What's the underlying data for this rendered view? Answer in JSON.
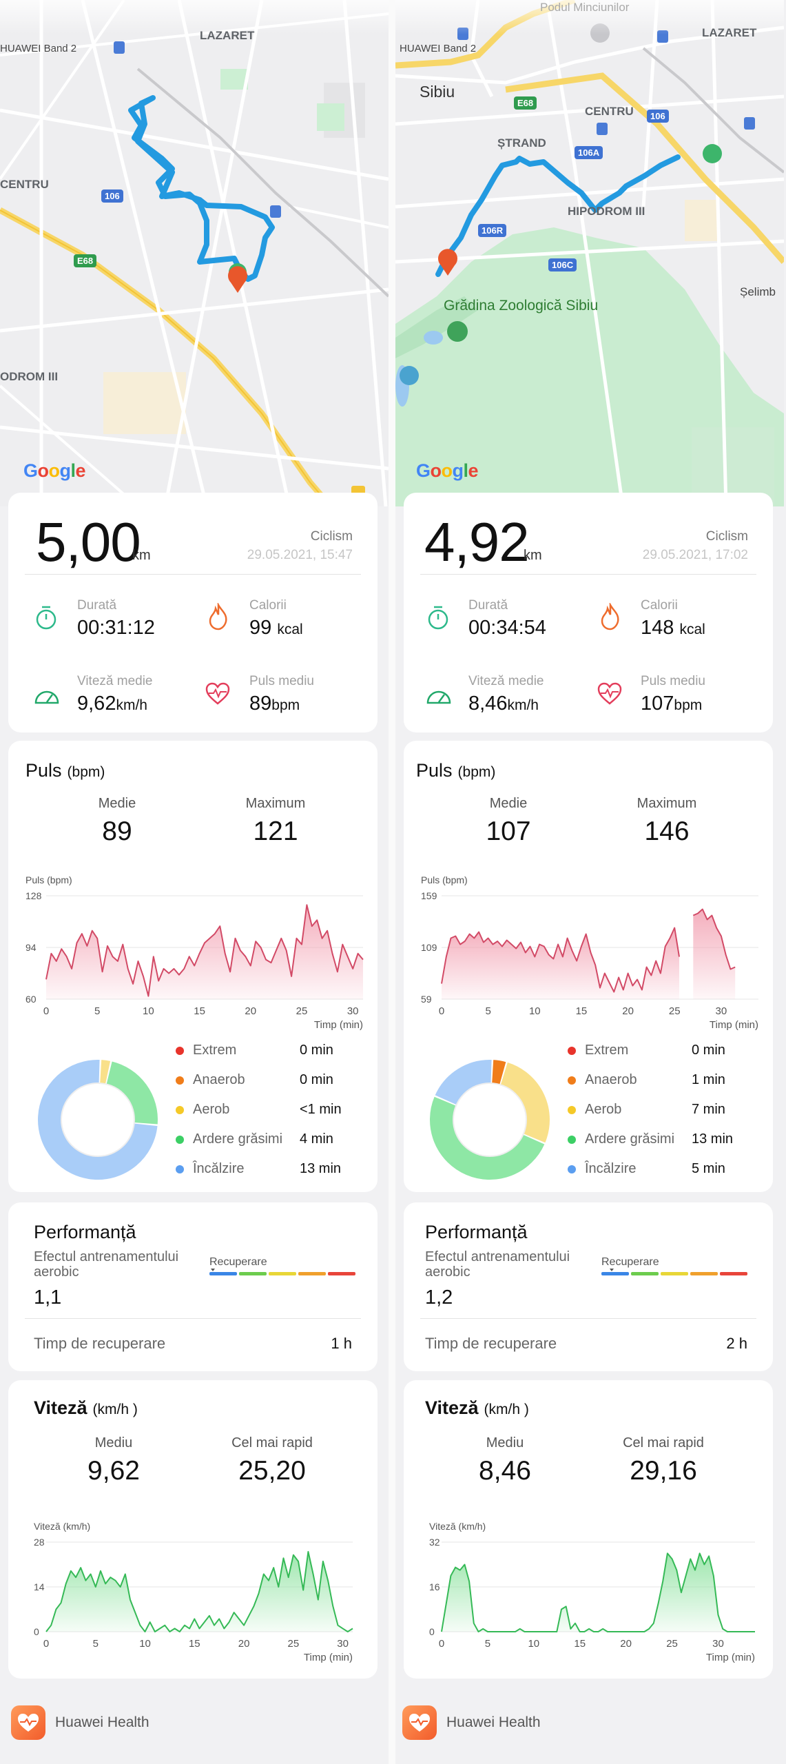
{
  "footer_label": "Huawei Health",
  "panels": [
    {
      "map": {
        "band": "HUAWEI Band 2",
        "labels": [
          "LAZARET",
          "CENTRU",
          "ODROM III"
        ],
        "shields": [
          "106",
          "E68"
        ],
        "google": "Google"
      },
      "summary": {
        "distance": "5,00",
        "distance_unit": "km",
        "activity": "Ciclism",
        "datetime": "29.05.2021, 15:47",
        "duration_label": "Durată",
        "duration": "00:31:12",
        "calories_label": "Calorii",
        "calories": "99",
        "calories_unit": "kcal",
        "speed_label": "Viteză medie",
        "speed": "9,62",
        "speed_unit": "km/h",
        "hr_label": "Puls mediu",
        "hr": "89",
        "hr_unit": "bpm"
      },
      "hr": {
        "title": "Puls",
        "unit": "(bpm)",
        "avg_label": "Medie",
        "avg": "89",
        "max_label": "Maximum",
        "max": "121",
        "axis_title": "Puls (bpm)",
        "axis_x_title": "Timp (min)",
        "zones": [
          {
            "name": "Extrem",
            "value": "0 min",
            "color": "#e8342b"
          },
          {
            "name": "Anaerob",
            "value": "0 min",
            "color": "#f07d1a"
          },
          {
            "name": "Aerob",
            "value": "<1 min",
            "color": "#f5c928"
          },
          {
            "name": "Ardere grăsimi",
            "value": "4 min",
            "color": "#3ccf65"
          },
          {
            "name": "Încălzire",
            "value": "13 min",
            "color": "#5b9ef0"
          }
        ]
      },
      "performance": {
        "title": "Performanță",
        "effect_label": "Efectul antrenamentului aerobic",
        "effect_value": "1,1",
        "recovery_scale_label": "Recuperare",
        "recovery_label": "Timp de recuperare",
        "recovery_value": "1 h"
      },
      "speed": {
        "title": "Viteză",
        "unit": "(km/h )",
        "avg_label": "Mediu",
        "avg": "9,62",
        "max_label": "Cel mai rapid",
        "max": "25,20",
        "axis_title": "Viteză (km/h)",
        "axis_x_title": "Timp (min)"
      }
    },
    {
      "map": {
        "band": "HUAWEI Band 2",
        "labels": [
          "Podul Minciunilor",
          "LAZARET",
          "Sibiu",
          "CENTRU",
          "ȘTRAND",
          "HIPODROM III",
          "Grădina Zoologică Sibiu",
          "Șelimb"
        ],
        "shields": [
          "E68",
          "106",
          "106A",
          "106R",
          "106C"
        ],
        "google": "Google"
      },
      "summary": {
        "distance": "4,92",
        "distance_unit": "km",
        "activity": "Ciclism",
        "datetime": "29.05.2021, 17:02",
        "duration_label": "Durată",
        "duration": "00:34:54",
        "calories_label": "Calorii",
        "calories": "148",
        "calories_unit": "kcal",
        "speed_label": "Viteză medie",
        "speed": "8,46",
        "speed_unit": "km/h",
        "hr_label": "Puls mediu",
        "hr": "107",
        "hr_unit": "bpm"
      },
      "hr": {
        "title": "Puls",
        "unit": "(bpm)",
        "avg_label": "Medie",
        "avg": "107",
        "max_label": "Maximum",
        "max": "146",
        "axis_title": "Puls (bpm)",
        "axis_x_title": "Timp (min)",
        "zones": [
          {
            "name": "Extrem",
            "value": "0 min",
            "color": "#e8342b"
          },
          {
            "name": "Anaerob",
            "value": "1 min",
            "color": "#f07d1a"
          },
          {
            "name": "Aerob",
            "value": "7 min",
            "color": "#f5c928"
          },
          {
            "name": "Ardere grăsimi",
            "value": "13 min",
            "color": "#3ccf65"
          },
          {
            "name": "Încălzire",
            "value": "5 min",
            "color": "#5b9ef0"
          }
        ]
      },
      "performance": {
        "title": "Performanță",
        "effect_label": "Efectul antrenamentului aerobic",
        "effect_value": "1,2",
        "recovery_scale_label": "Recuperare",
        "recovery_label": "Timp de recuperare",
        "recovery_value": "2 h"
      },
      "speed": {
        "title": "Viteză",
        "unit": "(km/h )",
        "avg_label": "Mediu",
        "avg": "8,46",
        "max_label": "Cel mai rapid",
        "max": "29,16",
        "axis_title": "Viteză (km/h)",
        "axis_x_title": "Timp (min)"
      }
    }
  ],
  "chart_data": [
    {
      "type": "area",
      "title": "Puls (bpm)",
      "xlabel": "Timp (min)",
      "ylabel": "Puls (bpm)",
      "ylim": [
        60,
        128
      ],
      "yticks": [
        60,
        94,
        128
      ],
      "xticks": [
        0,
        5,
        10,
        15,
        20,
        25,
        30
      ],
      "xlim": [
        0,
        31
      ],
      "x": [
        0,
        0.5,
        1,
        1.5,
        2,
        2.5,
        3,
        3.5,
        4,
        4.5,
        5,
        5.5,
        6,
        6.5,
        7,
        7.5,
        8,
        8.5,
        9,
        9.5,
        10,
        10.5,
        11,
        11.5,
        12,
        12.5,
        13,
        13.5,
        14,
        14.5,
        15,
        15.5,
        16,
        16.5,
        17,
        17.5,
        18,
        18.5,
        19,
        19.5,
        20,
        20.5,
        21,
        21.5,
        22,
        22.5,
        23,
        23.5,
        24,
        24.5,
        25,
        25.5,
        26,
        26.5,
        27,
        27.5,
        28,
        28.5,
        29,
        29.5,
        30,
        30.5,
        31
      ],
      "series": [
        {
          "values": [
            73,
            90,
            85,
            93,
            88,
            80,
            97,
            103,
            95,
            105,
            100,
            78,
            95,
            88,
            85,
            96,
            80,
            70,
            85,
            75,
            62,
            88,
            72,
            80,
            77,
            80,
            76,
            80,
            88,
            82,
            90,
            97,
            100,
            103,
            108,
            90,
            78,
            100,
            92,
            88,
            82,
            98,
            94,
            86,
            84,
            92,
            100,
            92,
            75,
            100,
            96,
            122,
            108,
            112,
            100,
            105,
            90,
            78,
            96,
            88,
            80,
            90,
            86
          ]
        }
      ]
    },
    {
      "type": "area",
      "title": "Puls (bpm)",
      "xlabel": "Timp (min)",
      "ylabel": "Puls (bpm)",
      "ylim": [
        59,
        159
      ],
      "yticks": [
        59,
        109,
        159
      ],
      "xticks": [
        0,
        5,
        10,
        15,
        20,
        25,
        30
      ],
      "xlim": [
        0,
        34
      ],
      "x": [
        0,
        0.5,
        1,
        1.5,
        2,
        2.5,
        3,
        3.5,
        4,
        4.5,
        5,
        5.5,
        6,
        6.5,
        7,
        7.5,
        8,
        8.5,
        9,
        9.5,
        10,
        10.5,
        11,
        11.5,
        12,
        12.5,
        13,
        13.5,
        14,
        14.5,
        15,
        15.5,
        16,
        16.5,
        17,
        17.5,
        18,
        18.5,
        19,
        19.5,
        20,
        20.5,
        21,
        21.5,
        22,
        22.5,
        23,
        23.5,
        24,
        24.5,
        25,
        25.5,
        26,
        26.5,
        27,
        27.5,
        28,
        28.5,
        29,
        29.5,
        30,
        30.5,
        31,
        31.5,
        32,
        32.5,
        33,
        33.5,
        34
      ],
      "series": [
        {
          "values": [
            74,
            100,
            118,
            120,
            112,
            115,
            122,
            118,
            124,
            114,
            118,
            112,
            115,
            110,
            116,
            112,
            108,
            114,
            104,
            110,
            100,
            112,
            110,
            102,
            98,
            112,
            100,
            118,
            106,
            96,
            110,
            122,
            104,
            92,
            70,
            84,
            75,
            66,
            80,
            68,
            84,
            72,
            78,
            68,
            90,
            82,
            96,
            84,
            110,
            118,
            128,
            100,
            null,
            null,
            140,
            142,
            146,
            136,
            140,
            128,
            120,
            102,
            88,
            90,
            null,
            null,
            null,
            null,
            null
          ]
        }
      ]
    },
    {
      "type": "pie",
      "title": "",
      "categories": [
        "Extrem",
        "Anaerob",
        "Aerob",
        "Ardere grăsimi",
        "Încălzire"
      ],
      "values": [
        0,
        0,
        0.5,
        4,
        13
      ]
    },
    {
      "type": "pie",
      "title": "",
      "categories": [
        "Extrem",
        "Anaerob",
        "Aerob",
        "Ardere grăsimi",
        "Încălzire"
      ],
      "values": [
        0,
        1,
        7,
        13,
        5
      ]
    },
    {
      "type": "area",
      "title": "Viteză (km/h)",
      "xlabel": "Timp (min)",
      "ylabel": "Viteză (km/h)",
      "ylim": [
        0,
        28
      ],
      "yticks": [
        0,
        14,
        28
      ],
      "xticks": [
        0,
        5,
        10,
        15,
        20,
        25,
        30
      ],
      "xlim": [
        0,
        31
      ],
      "x": [
        0,
        0.5,
        1,
        1.5,
        2,
        2.5,
        3,
        3.5,
        4,
        4.5,
        5,
        5.5,
        6,
        6.5,
        7,
        7.5,
        8,
        8.5,
        9,
        9.5,
        10,
        10.5,
        11,
        11.5,
        12,
        12.5,
        13,
        13.5,
        14,
        14.5,
        15,
        15.5,
        16,
        16.5,
        17,
        17.5,
        18,
        18.5,
        19,
        19.5,
        20,
        20.5,
        21,
        21.5,
        22,
        22.5,
        23,
        23.5,
        24,
        24.5,
        25,
        25.5,
        26,
        26.5,
        27,
        27.5,
        28,
        28.5,
        29,
        29.5,
        30,
        30.5,
        31
      ],
      "series": [
        {
          "values": [
            0,
            2,
            7,
            9,
            15,
            19,
            17,
            20,
            16,
            18,
            14,
            19,
            15,
            17,
            16,
            14,
            18,
            10,
            6,
            2,
            0,
            3,
            0,
            1,
            2,
            0,
            1,
            0,
            2,
            1,
            4,
            1,
            3,
            5,
            2,
            4,
            1,
            3,
            6,
            4,
            2,
            5,
            8,
            12,
            18,
            16,
            20,
            14,
            23,
            17,
            24,
            22,
            13,
            25,
            18,
            10,
            22,
            16,
            8,
            2,
            1,
            0,
            1
          ]
        }
      ]
    },
    {
      "type": "area",
      "title": "Viteză (km/h)",
      "xlabel": "Timp (min)",
      "ylabel": "Viteză (km/h)",
      "ylim": [
        0,
        32
      ],
      "yticks": [
        0,
        16,
        32
      ],
      "xticks": [
        0,
        5,
        10,
        15,
        20,
        25,
        30
      ],
      "xlim": [
        0,
        34
      ],
      "x": [
        0,
        0.5,
        1,
        1.5,
        2,
        2.5,
        3,
        3.5,
        4,
        4.5,
        5,
        5.5,
        6,
        6.5,
        7,
        7.5,
        8,
        8.5,
        9,
        9.5,
        10,
        10.5,
        11,
        11.5,
        12,
        12.5,
        13,
        13.5,
        14,
        14.5,
        15,
        15.5,
        16,
        16.5,
        17,
        17.5,
        18,
        18.5,
        19,
        19.5,
        20,
        20.5,
        21,
        21.5,
        22,
        22.5,
        23,
        23.5,
        24,
        24.5,
        25,
        25.5,
        26,
        26.5,
        27,
        27.5,
        28,
        28.5,
        29,
        29.5,
        30,
        30.5,
        31,
        31.5,
        32,
        32.5,
        33,
        33.5,
        34
      ],
      "series": [
        {
          "values": [
            0,
            10,
            20,
            23,
            22,
            24,
            18,
            3,
            0,
            1,
            0,
            0,
            0,
            0,
            0,
            0,
            0,
            1,
            0,
            0,
            0,
            0,
            0,
            0,
            0,
            0,
            8,
            9,
            1,
            3,
            0,
            0,
            1,
            0,
            0,
            1,
            0,
            0,
            0,
            0,
            0,
            0,
            0,
            0,
            0,
            1,
            3,
            10,
            18,
            28,
            26,
            22,
            14,
            20,
            26,
            22,
            28,
            24,
            27,
            20,
            6,
            1,
            0,
            0,
            0,
            0,
            0,
            0,
            0
          ]
        }
      ]
    }
  ]
}
